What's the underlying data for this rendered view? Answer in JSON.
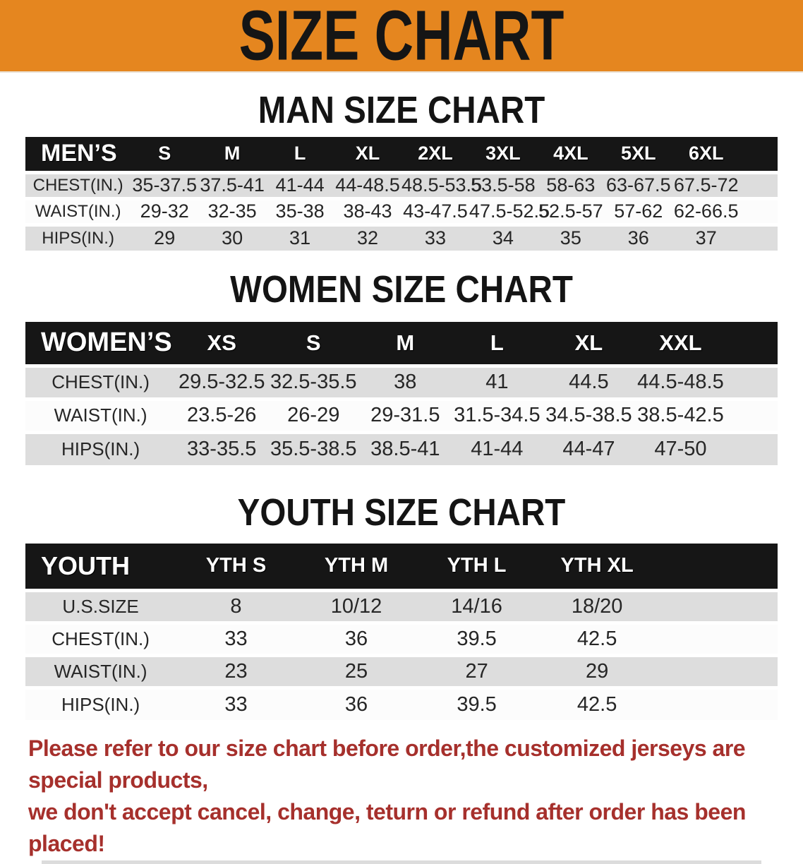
{
  "banner": {
    "title": "SIZE CHART",
    "bg_color": "#E5861F"
  },
  "sections": [
    {
      "heading": "MAN SIZE CHART",
      "table": {
        "label": "MEN’S",
        "columns": [
          "S",
          "M",
          "L",
          "XL",
          "2XL",
          "3XL",
          "4XL",
          "5XL",
          "6XL"
        ],
        "rows": [
          {
            "label": "CHEST(IN.)",
            "values": [
              "35-37.5",
              "37.5-41",
              "41-44",
              "44-48.5",
              "48.5-53.5",
              "53.5-58",
              "58-63",
              "63-67.5",
              "67.5-72"
            ]
          },
          {
            "label": "WAIST(IN.)",
            "values": [
              "29-32",
              "32-35",
              "35-38",
              "38-43",
              "43-47.5",
              "47.5-52.5",
              "52.5-57",
              "57-62",
              "62-66.5"
            ]
          },
          {
            "label": "HIPS(IN.)",
            "values": [
              "29",
              "30",
              "31",
              "32",
              "33",
              "34",
              "35",
              "36",
              "37"
            ]
          }
        ]
      }
    },
    {
      "heading": "WOMEN SIZE CHART",
      "table": {
        "label": "WOMEN’S",
        "columns": [
          "XS",
          "S",
          "M",
          "L",
          "XL",
          "XXL"
        ],
        "rows": [
          {
            "label": "CHEST(IN.)",
            "values": [
              "29.5-32.5",
              "32.5-35.5",
              "38",
              "41",
              "44.5",
              "44.5-48.5"
            ]
          },
          {
            "label": "WAIST(IN.)",
            "values": [
              "23.5-26",
              "26-29",
              "29-31.5",
              "31.5-34.5",
              "34.5-38.5",
              "38.5-42.5"
            ]
          },
          {
            "label": "HIPS(IN.)",
            "values": [
              "33-35.5",
              "35.5-38.5",
              "38.5-41",
              "41-44",
              "44-47",
              "47-50"
            ]
          }
        ]
      }
    },
    {
      "heading": "YOUTH SIZE CHART",
      "table": {
        "label": "YOUTH",
        "columns": [
          "YTH S",
          "YTH M",
          "YTH L",
          "YTH XL"
        ],
        "rows": [
          {
            "label": "U.S.SIZE",
            "values": [
              "8",
              "10/12",
              "14/16",
              "18/20"
            ]
          },
          {
            "label": "CHEST(IN.)",
            "values": [
              "33",
              "36",
              "39.5",
              "42.5"
            ]
          },
          {
            "label": "WAIST(IN.)",
            "values": [
              "23",
              "25",
              "27",
              "29"
            ]
          },
          {
            "label": "HIPS(IN.)",
            "values": [
              "33",
              "36",
              "39.5",
              "42.5"
            ]
          }
        ]
      }
    }
  ],
  "footer": {
    "line1": "Please refer to our size chart before order,the customized jerseys are special products,",
    "line2": "we don't accept cancel, change, teturn or refund after order has been placed!",
    "text_color": "#A6302C"
  }
}
